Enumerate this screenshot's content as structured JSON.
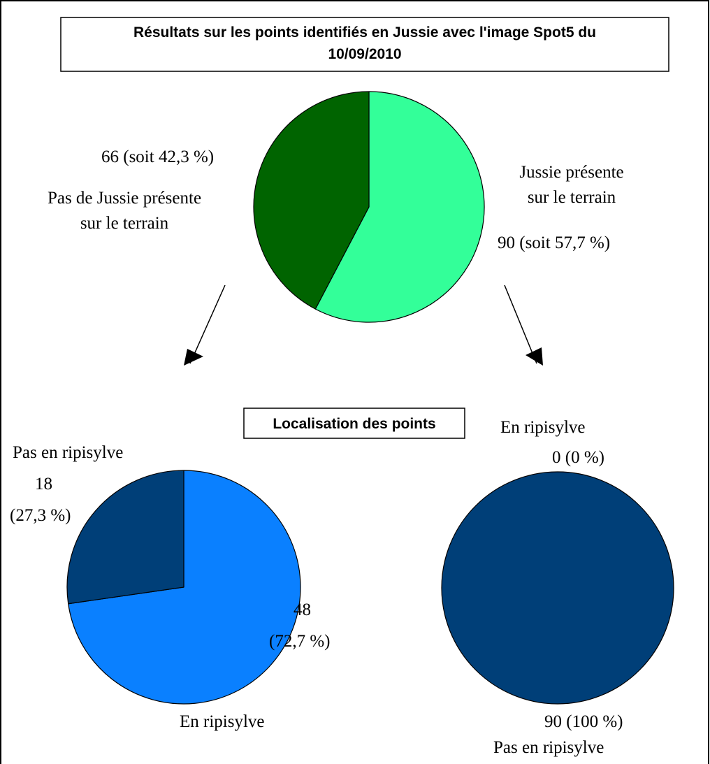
{
  "title": "Résultats sur les points identifiés en Jussie avec l'image Spot5 du 10/09/2010",
  "title_lines": [
    "Résultats sur les points identifiés en Jussie avec l'image Spot5 du",
    "10/09/2010"
  ],
  "subtitle": "Localisation des points",
  "colors": {
    "absent": "#006400",
    "present": "#33ff99",
    "ripisylve_in": "#0a80ff",
    "ripisylve_out": "#003f78",
    "outline": "#000000"
  },
  "chart_data": [
    {
      "type": "pie",
      "id": "top",
      "title": "Résultats sur les points identifiés en Jussie avec l'image Spot5 du 10/09/2010",
      "slices": [
        {
          "label": "Jussie présente sur le terrain",
          "value": 90,
          "percent": 57.7,
          "value_label": "90 (soit 57,7 %)",
          "color": "#33ff99"
        },
        {
          "label": "Pas de Jussie présente sur le terrain",
          "value": 66,
          "percent": 42.3,
          "value_label": "66 (soit 42,3 %)",
          "color": "#006400"
        }
      ]
    },
    {
      "type": "pie",
      "id": "bottom-left",
      "title": "Localisation des points",
      "slices": [
        {
          "label": "En ripisylve",
          "value": 48,
          "percent": 72.7,
          "value_label": "48 (72,7 %)",
          "color": "#0a80ff"
        },
        {
          "label": "Pas en ripisylve",
          "value": 18,
          "percent": 27.3,
          "value_label": "18 (27,3 %)",
          "color": "#003f78"
        }
      ]
    },
    {
      "type": "pie",
      "id": "bottom-right",
      "title": "Localisation des points",
      "slices": [
        {
          "label": "En ripisylve",
          "value": 0,
          "percent": 0,
          "value_label": "0 (0 %)",
          "color": "#0a80ff"
        },
        {
          "label": "Pas en ripisylve",
          "value": 90,
          "percent": 100,
          "value_label": "90 (100 %)",
          "color": "#003f78"
        }
      ]
    }
  ],
  "labels": {
    "top_present_label_lines": [
      "Jussie présente",
      "sur le terrain"
    ],
    "top_present_value": "90 (soit 57,7 %)",
    "top_absent_label_lines": [
      "Pas de Jussie présente",
      "sur le terrain"
    ],
    "top_absent_value": "66 (soit 42,3 %)",
    "bl_out_label": "Pas en ripisylve",
    "bl_out_value_lines": [
      "18",
      "(27,3 %)"
    ],
    "bl_in_value_lines": [
      "48",
      "(72,7 %)"
    ],
    "bl_in_label": "En ripisylve",
    "br_in_label": "En ripisylve",
    "br_in_value": "0 (0 %)",
    "br_out_value": "90 (100 %)",
    "br_out_label": "Pas en ripisylve"
  }
}
